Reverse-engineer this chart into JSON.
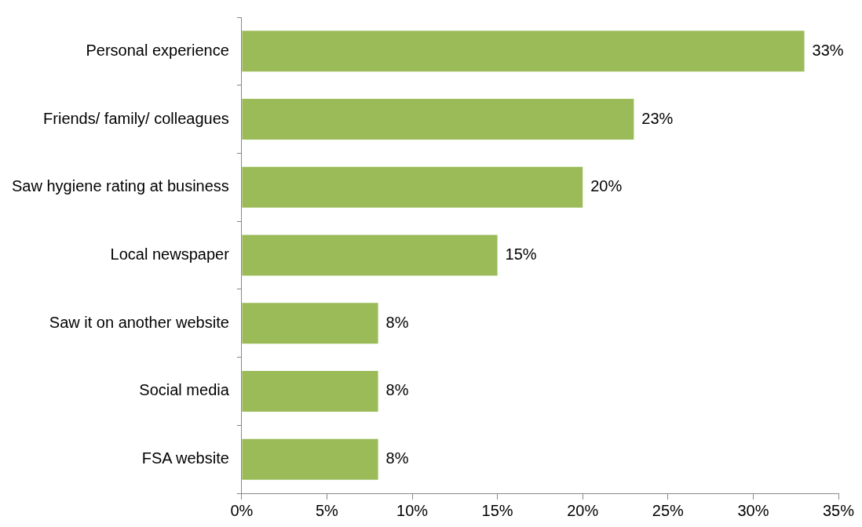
{
  "chart_data": {
    "type": "bar",
    "orientation": "horizontal",
    "categories": [
      "Personal experience",
      "Friends/ family/ colleagues",
      "Saw hygiene rating at business",
      "Local newspaper",
      "Saw it on another website",
      "Social media",
      "FSA website"
    ],
    "values": [
      33,
      23,
      20,
      15,
      8,
      8,
      8
    ],
    "value_labels": [
      "33%",
      "23%",
      "20%",
      "15%",
      "8%",
      "8%",
      "8%"
    ],
    "color": "#9bbb59",
    "xlim": [
      0,
      35
    ],
    "xticks": [
      {
        "value": 0,
        "label": "0%"
      },
      {
        "value": 5,
        "label": "5%"
      },
      {
        "value": 10,
        "label": "10%"
      },
      {
        "value": 15,
        "label": "15%"
      },
      {
        "value": 20,
        "label": "20%"
      },
      {
        "value": 25,
        "label": "25%"
      },
      {
        "value": 30,
        "label": "30%"
      },
      {
        "value": 35,
        "label": "35%"
      }
    ],
    "grid": false,
    "legend": false
  }
}
